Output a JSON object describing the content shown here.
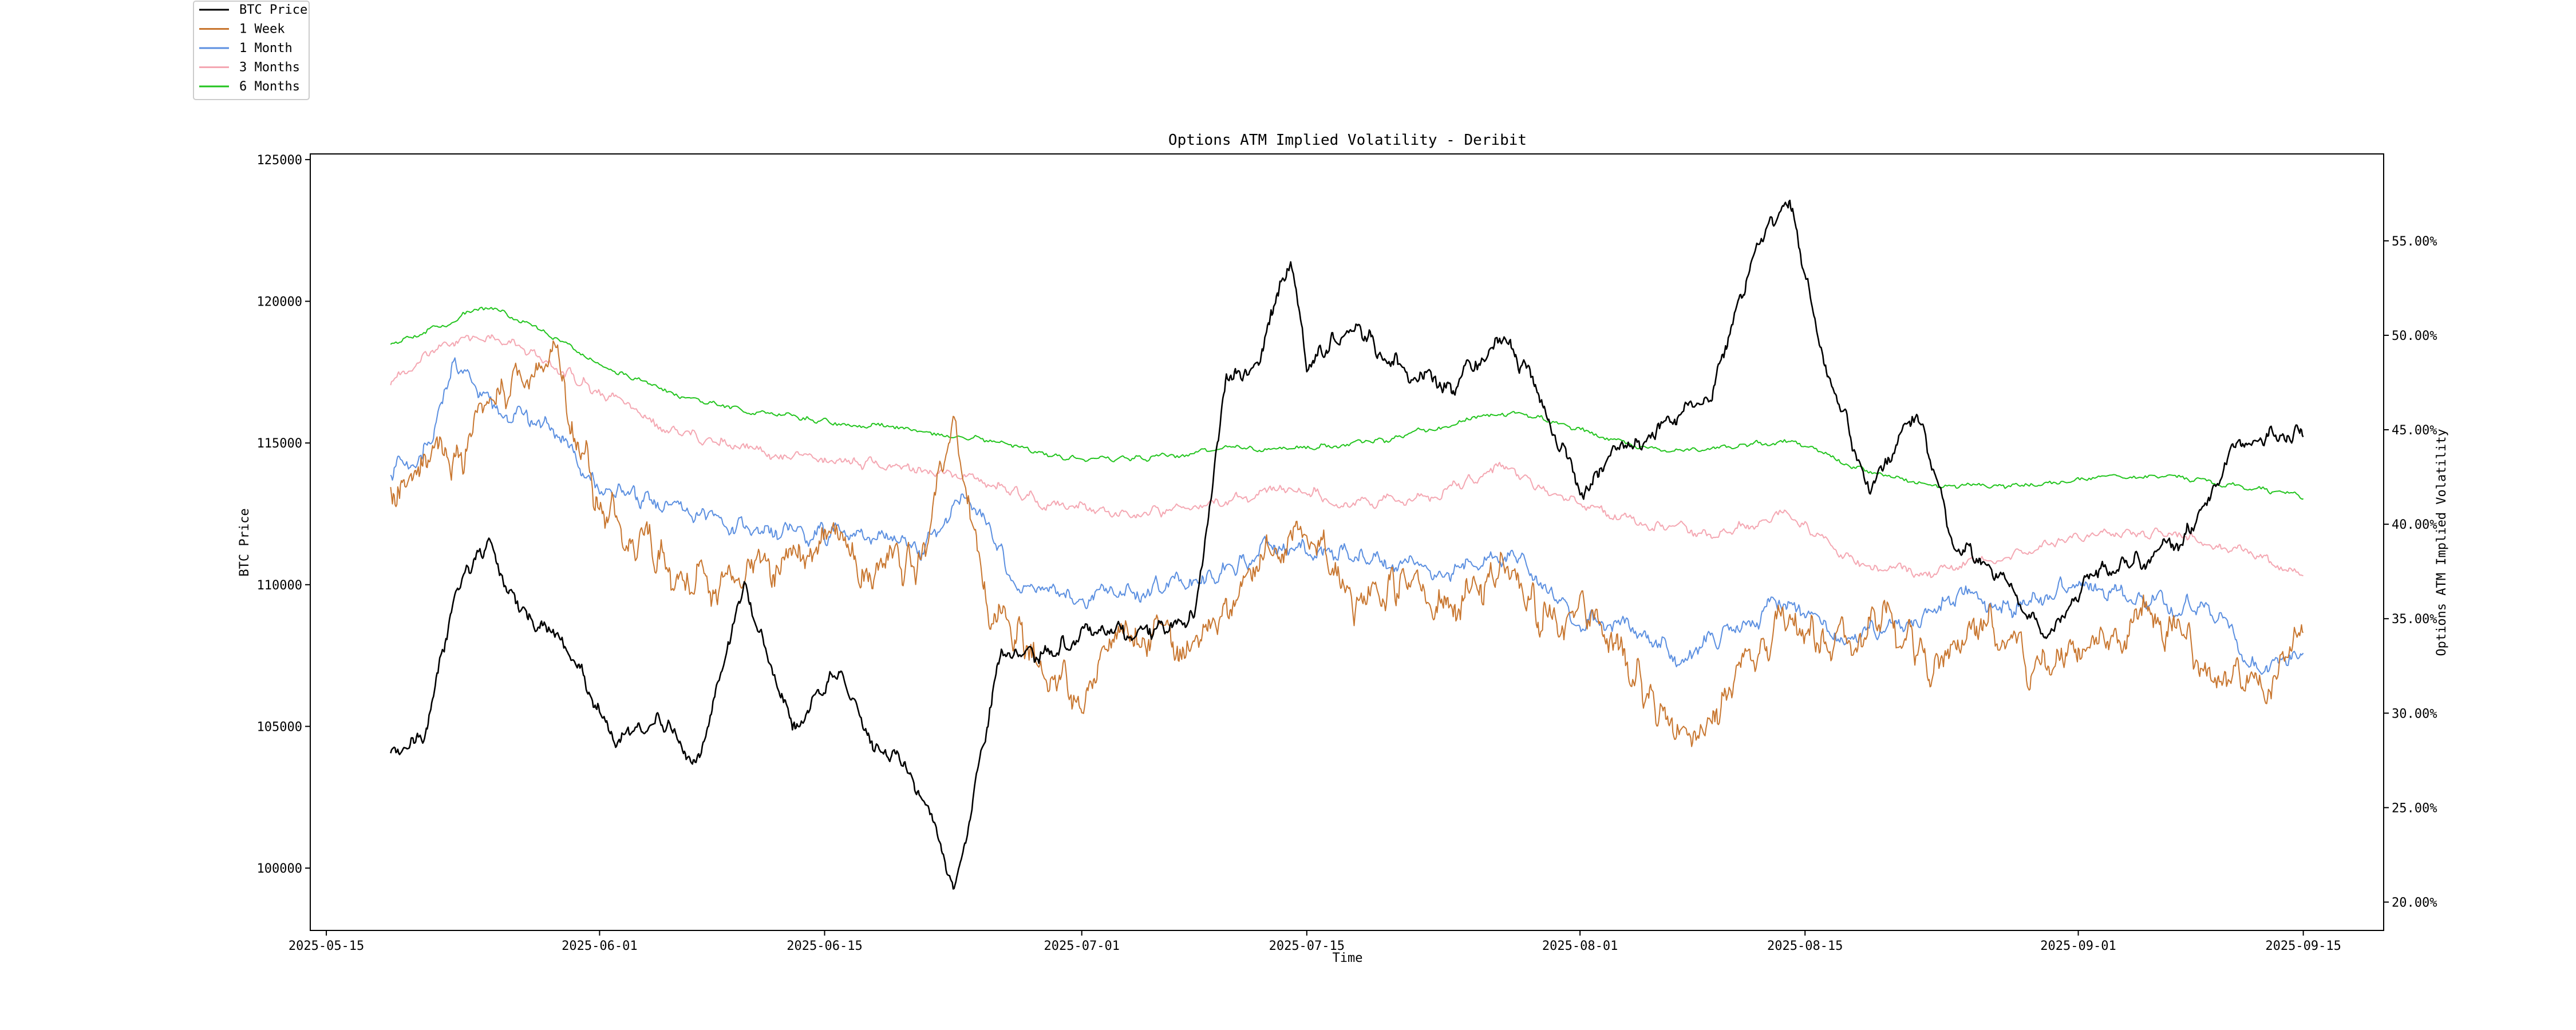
{
  "chart_data": {
    "type": "line",
    "title": "Options ATM Implied Volatility - Deribit",
    "xlabel": "Time",
    "ylabel_left": "BTC Price",
    "ylabel_right": "Options ATM Implied Volatility",
    "x_ticks": [
      "2025-05-15",
      "2025-06-01",
      "2025-06-15",
      "2025-07-01",
      "2025-07-15",
      "2025-08-01",
      "2025-08-15",
      "2025-09-01",
      "2025-09-15"
    ],
    "left_ticks": [
      "100000",
      "105000",
      "110000",
      "115000",
      "120000",
      "125000"
    ],
    "right_ticks": [
      "20.00%",
      "25.00%",
      "30.00%",
      "35.00%",
      "40.00%",
      "45.00%",
      "50.00%",
      "55.00%"
    ],
    "x_range": [
      "2025-05-14",
      "2025-09-20"
    ],
    "ylim_left": [
      97800,
      125200
    ],
    "ylim_right": [
      18.5,
      59.6
    ],
    "legend_position": "top-left, outside plot",
    "series": [
      {
        "name": "BTC Price",
        "axis": "left",
        "color": "#000000",
        "x": [
          "2025-05-19",
          "2025-05-21",
          "2025-05-23",
          "2025-05-25",
          "2025-05-27",
          "2025-05-30",
          "2025-06-02",
          "2025-06-05",
          "2025-06-07",
          "2025-06-10",
          "2025-06-13",
          "2025-06-16",
          "2025-06-18",
          "2025-06-20",
          "2025-06-22",
          "2025-06-23",
          "2025-06-26",
          "2025-06-29",
          "2025-07-02",
          "2025-07-05",
          "2025-07-08",
          "2025-07-10",
          "2025-07-12",
          "2025-07-14",
          "2025-07-15",
          "2025-07-18",
          "2025-07-21",
          "2025-07-24",
          "2025-07-27",
          "2025-07-29",
          "2025-08-01",
          "2025-08-03",
          "2025-08-06",
          "2025-08-09",
          "2025-08-12",
          "2025-08-14",
          "2025-08-16",
          "2025-08-19",
          "2025-08-22",
          "2025-08-24",
          "2025-08-26",
          "2025-08-30",
          "2025-09-02",
          "2025-09-05",
          "2025-09-08",
          "2025-09-11",
          "2025-09-15"
        ],
        "values": [
          104000,
          104500,
          109800,
          111500,
          109000,
          107800,
          104500,
          105200,
          103500,
          109800,
          104800,
          107200,
          104200,
          103800,
          101200,
          99000,
          107500,
          107500,
          108500,
          108300,
          108800,
          117200,
          118000,
          121500,
          117800,
          119300,
          117500,
          116900,
          118800,
          117200,
          113200,
          114600,
          115500,
          116600,
          122000,
          123800,
          118200,
          113400,
          116200,
          111800,
          110800,
          108300,
          110500,
          110800,
          111800,
          115100,
          115400
        ]
      },
      {
        "name": "1 Week",
        "axis": "right",
        "color": "#c8762f",
        "x": [
          "2025-05-19",
          "2025-05-21",
          "2025-05-23",
          "2025-05-26",
          "2025-05-29",
          "2025-06-01",
          "2025-06-05",
          "2025-06-08",
          "2025-06-12",
          "2025-06-15",
          "2025-06-18",
          "2025-06-21",
          "2025-06-23",
          "2025-06-25",
          "2025-06-28",
          "2025-07-01",
          "2025-07-04",
          "2025-07-07",
          "2025-07-10",
          "2025-07-13",
          "2025-07-15",
          "2025-07-18",
          "2025-07-21",
          "2025-07-24",
          "2025-07-27",
          "2025-07-30",
          "2025-08-02",
          "2025-08-05",
          "2025-08-08",
          "2025-08-11",
          "2025-08-14",
          "2025-08-17",
          "2025-08-20",
          "2025-08-23",
          "2025-08-26",
          "2025-08-29",
          "2025-09-02",
          "2025-09-05",
          "2025-09-08",
          "2025-09-11",
          "2025-09-14",
          "2025-09-15"
        ],
        "values": [
          40.5,
          44.0,
          43.5,
          47.0,
          49.0,
          41.0,
          38.0,
          36.5,
          38.0,
          39.0,
          37.5,
          38.0,
          46.0,
          36.0,
          33.0,
          31.0,
          34.5,
          33.5,
          36.0,
          38.5,
          39.5,
          36.0,
          37.0,
          35.5,
          38.0,
          34.5,
          35.5,
          31.0,
          29.0,
          32.5,
          35.0,
          33.5,
          35.5,
          32.0,
          35.0,
          32.5,
          33.5,
          35.0,
          33.5,
          31.5,
          32.0,
          34.5
        ]
      },
      {
        "name": "1 Month",
        "axis": "right",
        "color": "#5b8fe0",
        "x": [
          "2025-05-19",
          "2025-05-21",
          "2025-05-23",
          "2025-05-26",
          "2025-05-29",
          "2025-06-01",
          "2025-06-05",
          "2025-06-09",
          "2025-06-13",
          "2025-06-17",
          "2025-06-21",
          "2025-06-24",
          "2025-06-27",
          "2025-07-01",
          "2025-07-05",
          "2025-07-09",
          "2025-07-13",
          "2025-07-16",
          "2025-07-20",
          "2025-07-24",
          "2025-07-28",
          "2025-08-01",
          "2025-08-04",
          "2025-08-07",
          "2025-08-11",
          "2025-08-14",
          "2025-08-17",
          "2025-08-21",
          "2025-08-25",
          "2025-08-28",
          "2025-09-01",
          "2025-09-05",
          "2025-09-09",
          "2025-09-12",
          "2025-09-15"
        ],
        "values": [
          43.0,
          43.5,
          48.5,
          46.0,
          45.0,
          42.0,
          41.0,
          40.0,
          39.5,
          39.5,
          38.5,
          41.5,
          37.0,
          36.0,
          36.5,
          37.0,
          39.0,
          38.5,
          38.0,
          37.5,
          38.5,
          35.0,
          34.5,
          33.0,
          34.5,
          36.0,
          34.0,
          34.5,
          36.5,
          35.5,
          37.0,
          36.0,
          35.5,
          32.5,
          33.5
        ]
      },
      {
        "name": "3 Months",
        "axis": "right",
        "color": "#f4a7b2",
        "x": [
          "2025-05-19",
          "2025-05-22",
          "2025-05-25",
          "2025-05-28",
          "2025-06-01",
          "2025-06-05",
          "2025-06-10",
          "2025-06-15",
          "2025-06-20",
          "2025-06-24",
          "2025-06-29",
          "2025-07-04",
          "2025-07-09",
          "2025-07-14",
          "2025-07-18",
          "2025-07-23",
          "2025-07-27",
          "2025-08-01",
          "2025-08-05",
          "2025-08-10",
          "2025-08-14",
          "2025-08-18",
          "2025-08-23",
          "2025-08-28",
          "2025-09-02",
          "2025-09-07",
          "2025-09-11",
          "2025-09-15"
        ],
        "values": [
          47.5,
          49.5,
          50.0,
          49.0,
          47.0,
          45.0,
          44.0,
          43.5,
          43.0,
          42.5,
          41.0,
          40.5,
          41.0,
          42.0,
          41.0,
          41.5,
          43.0,
          41.0,
          40.0,
          39.5,
          40.5,
          38.0,
          37.5,
          38.5,
          39.5,
          39.5,
          38.5,
          37.5
        ]
      },
      {
        "name": "6 Months",
        "axis": "right",
        "color": "#22c41e",
        "x": [
          "2025-05-19",
          "2025-05-22",
          "2025-05-25",
          "2025-05-28",
          "2025-06-01",
          "2025-06-05",
          "2025-06-10",
          "2025-06-15",
          "2025-06-20",
          "2025-06-25",
          "2025-06-30",
          "2025-07-05",
          "2025-07-10",
          "2025-07-15",
          "2025-07-20",
          "2025-07-25",
          "2025-07-28",
          "2025-08-01",
          "2025-08-05",
          "2025-08-10",
          "2025-08-14",
          "2025-08-18",
          "2025-08-23",
          "2025-08-28",
          "2025-09-02",
          "2025-09-07",
          "2025-09-11",
          "2025-09-15"
        ],
        "values": [
          49.5,
          50.5,
          51.5,
          50.5,
          48.5,
          47.0,
          46.0,
          45.5,
          45.0,
          44.5,
          43.5,
          43.5,
          44.0,
          44.0,
          44.5,
          45.5,
          46.0,
          45.0,
          44.0,
          44.0,
          44.5,
          43.0,
          42.0,
          42.0,
          42.5,
          42.5,
          42.0,
          41.5
        ]
      }
    ]
  }
}
